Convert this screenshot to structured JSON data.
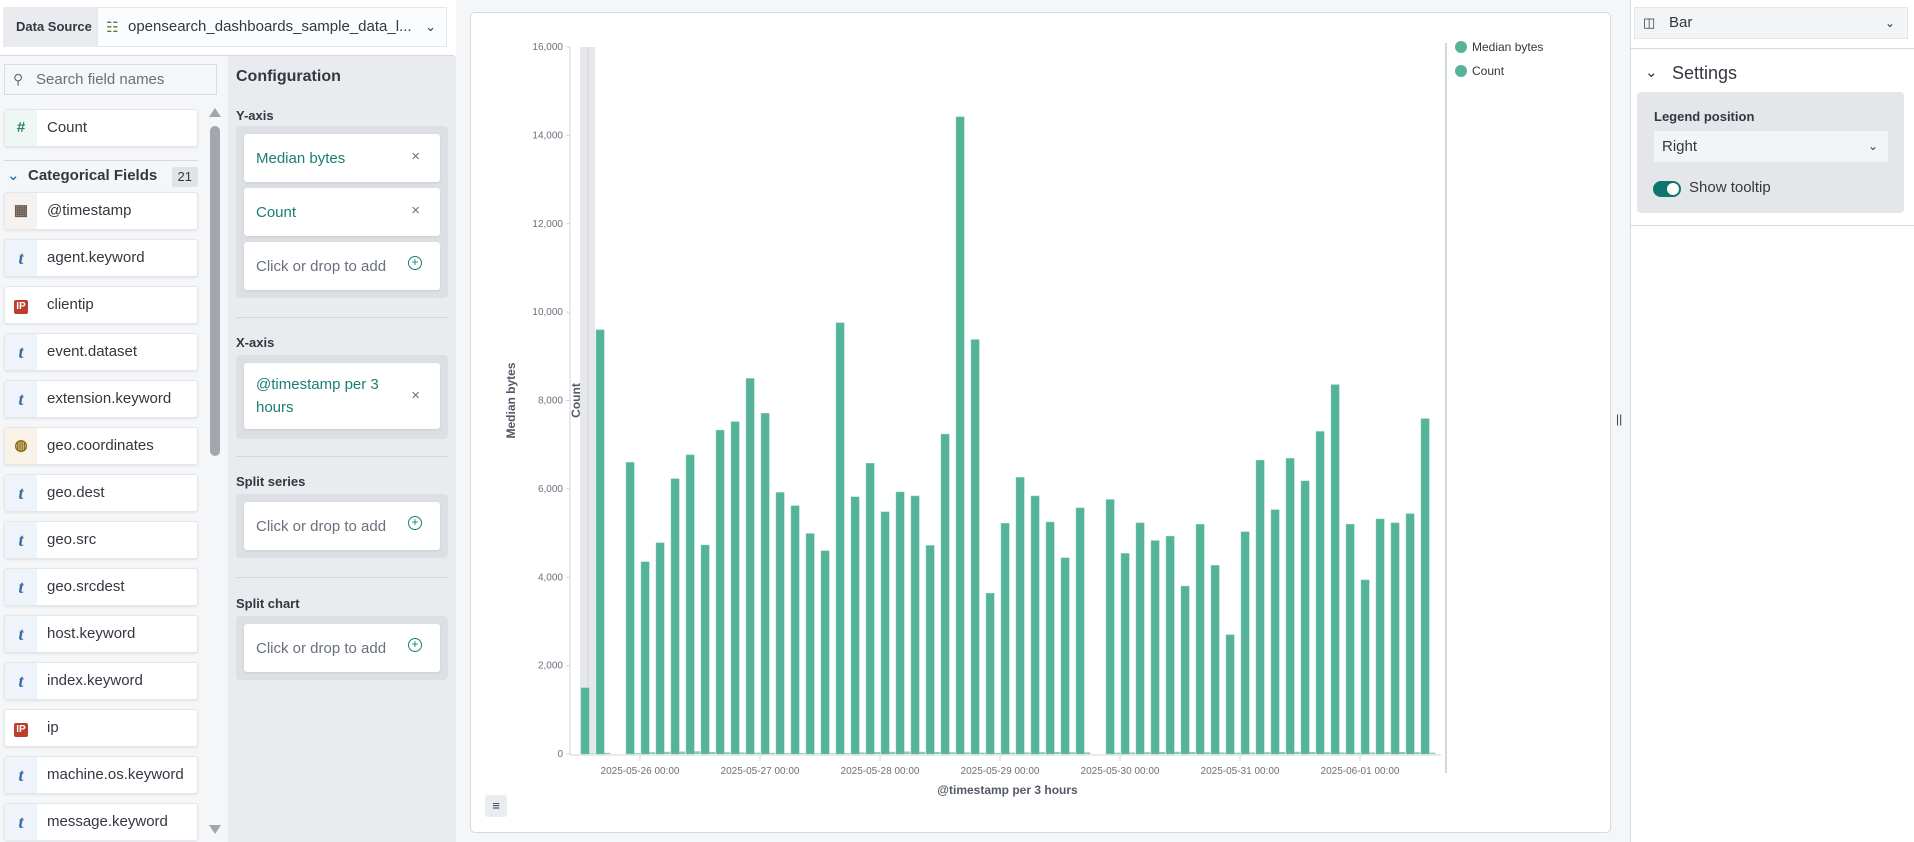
{
  "data_source": {
    "label": "Data Source",
    "value": "opensearch_dashboards_sample_data_l...",
    "icon": "index-pattern-icon"
  },
  "fields": {
    "search_placeholder": "Search field names",
    "count_field": {
      "name": "Count",
      "type": "number"
    },
    "categorical_header": "Categorical Fields",
    "categorical_count": "21",
    "items": [
      {
        "name": "@timestamp",
        "type": "date"
      },
      {
        "name": "agent.keyword",
        "type": "string"
      },
      {
        "name": "clientip",
        "type": "ip"
      },
      {
        "name": "event.dataset",
        "type": "string"
      },
      {
        "name": "extension.keyword",
        "type": "string"
      },
      {
        "name": "geo.coordinates",
        "type": "geo"
      },
      {
        "name": "geo.dest",
        "type": "string"
      },
      {
        "name": "geo.src",
        "type": "string"
      },
      {
        "name": "geo.srcdest",
        "type": "string"
      },
      {
        "name": "host.keyword",
        "type": "string"
      },
      {
        "name": "index.keyword",
        "type": "string"
      },
      {
        "name": "ip",
        "type": "ip"
      },
      {
        "name": "machine.os.keyword",
        "type": "string"
      },
      {
        "name": "message.keyword",
        "type": "string"
      }
    ]
  },
  "config": {
    "title": "Configuration",
    "yaxis": {
      "title": "Y-axis",
      "items": [
        "Median bytes",
        "Count"
      ],
      "add": "Click or drop to add"
    },
    "xaxis": {
      "title": "X-axis",
      "items": [
        "@timestamp per 3 hours"
      ]
    },
    "split_series": {
      "title": "Split series",
      "add": "Click or drop to add"
    },
    "split_chart": {
      "title": "Split chart",
      "add": "Click or drop to add"
    }
  },
  "right": {
    "chart_type": "Bar",
    "settings_title": "Settings",
    "legend_position_label": "Legend position",
    "legend_position": "Right",
    "show_tooltip_label": "Show tooltip",
    "show_tooltip": true
  },
  "chart_data": {
    "type": "bar",
    "xlabel": "@timestamp per 3 hours",
    "ylabel": "Median bytes",
    "y2label": "Count",
    "ylim": [
      0,
      16000
    ],
    "yticks": [
      "0",
      "2,000",
      "4,000",
      "6,000",
      "8,000",
      "10,000",
      "12,000",
      "14,000",
      "16,000"
    ],
    "xticks": [
      "2025-05-26 00:00",
      "2025-05-27 00:00",
      "2025-05-28 00:00",
      "2025-05-29 00:00",
      "2025-05-30 00:00",
      "2025-05-31 00:00",
      "2025-06-01 00:00"
    ],
    "x_start": "2025-05-25 12:00",
    "interval_hours": 3,
    "legend_position": "right",
    "color": "#54b399",
    "series": [
      {
        "name": "Median bytes",
        "values": [
          1500,
          9600,
          0,
          6600,
          4350,
          4780,
          6230,
          6770,
          4730,
          7330,
          7520,
          8500,
          7710,
          5920,
          5620,
          4990,
          4600,
          9760,
          5820,
          6580,
          5480,
          5930,
          5840,
          4720,
          7240,
          14420,
          9380,
          3640,
          5220,
          6260,
          5840,
          5250,
          4440,
          5570,
          0,
          5760,
          4540,
          5230,
          4830,
          4930,
          3800,
          5200,
          4270,
          2700,
          5030,
          6650,
          5530,
          6690,
          6180,
          7300,
          8360,
          5200,
          3940,
          5320,
          5230,
          5440,
          7590
        ]
      },
      {
        "name": "Count",
        "values": [
          10,
          25,
          0,
          20,
          40,
          50,
          55,
          60,
          45,
          40,
          35,
          30,
          25,
          20,
          20,
          15,
          15,
          20,
          35,
          45,
          50,
          55,
          50,
          45,
          40,
          35,
          30,
          25,
          30,
          35,
          40,
          45,
          40,
          35,
          0,
          30,
          35,
          40,
          45,
          50,
          45,
          40,
          35,
          30,
          35,
          40,
          45,
          50,
          45,
          40,
          35,
          30,
          35,
          40,
          45,
          40,
          30
        ]
      }
    ]
  }
}
